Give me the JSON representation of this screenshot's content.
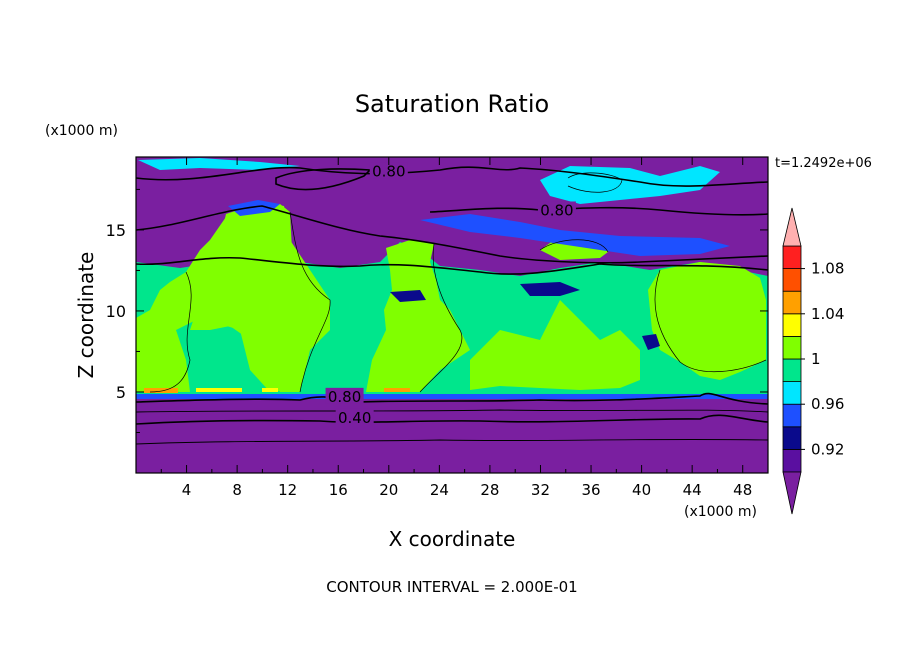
{
  "chart_data": {
    "type": "heatmap",
    "title": "Saturation Ratio",
    "xlabel": "X coordinate",
    "ylabel": "Z coordinate",
    "x_units": "(x1000 m)",
    "y_units": "(x1000 m)",
    "time_label": "t=1.2492e+06",
    "footer": "CONTOUR INTERVAL = 2.000E-01",
    "xlim": [
      0,
      50
    ],
    "ylim": [
      0,
      19.5
    ],
    "x_ticks": [
      "4",
      "8",
      "12",
      "16",
      "20",
      "24",
      "28",
      "32",
      "36",
      "40",
      "44",
      "48"
    ],
    "y_ticks": [
      "5",
      "10",
      "15"
    ],
    "contour_labels": [
      {
        "text": "0.80",
        "x": 20,
        "y": 18.6
      },
      {
        "text": "0.80",
        "x": 33.3,
        "y": 16.2
      },
      {
        "text": "0.80",
        "x": 16.5,
        "y": 4.7
      },
      {
        "text": "0.40",
        "x": 17.3,
        "y": 3.4
      }
    ],
    "colorbar": {
      "tick_labels": [
        "0.92",
        "0.96",
        "1",
        "1.04",
        "1.08"
      ],
      "levels": [
        0.9,
        0.92,
        0.94,
        0.96,
        0.98,
        1.0,
        1.02,
        1.04,
        1.06,
        1.08,
        1.1
      ],
      "colors": [
        "#5a0fa0",
        "#0a0a8c",
        "#1e50ff",
        "#00e6ff",
        "#00e68c",
        "#80ff00",
        "#ffff00",
        "#ffa000",
        "#ff5000",
        "#ff2020",
        "#ffb0b0"
      ],
      "under_color": "#7a1fa0",
      "over_color": "#ffb0b0"
    },
    "regions": {
      "lower_dry_band": {
        "z_range": [
          0,
          4.8
        ],
        "value": "<0.90"
      },
      "moist_layer": {
        "z_range": [
          4.8,
          13.5
        ],
        "value": "0.98-1.02"
      },
      "upper_dry_band": {
        "z_range": [
          13.5,
          19.5
        ],
        "value": "<0.90"
      }
    }
  }
}
